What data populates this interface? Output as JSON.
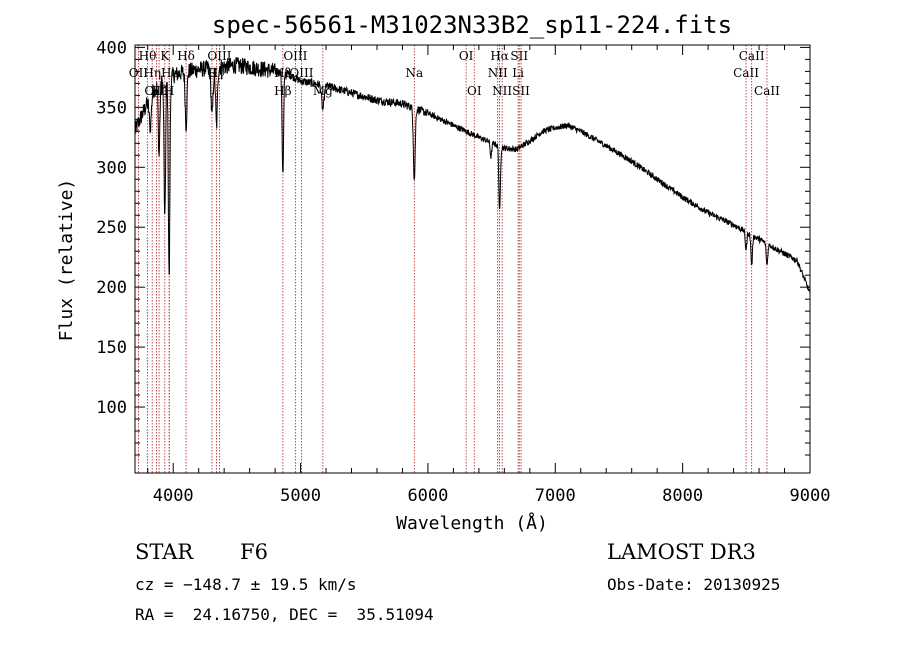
{
  "chart_data": {
    "type": "line",
    "title": "spec-56561-M31023N33B2_sp11-224.fits",
    "xlabel": "Wavelength (Å)",
    "ylabel": "Flux (relative)",
    "xlim": [
      3700,
      9000
    ],
    "ylim": [
      45,
      402
    ],
    "xticks": [
      4000,
      5000,
      6000,
      7000,
      8000,
      9000
    ],
    "yticks": [
      100,
      150,
      200,
      250,
      300,
      350,
      400
    ],
    "series_color": "#000000",
    "line_marker_color": "#b22222",
    "continuum": [
      [
        3700,
        330
      ],
      [
        3760,
        345
      ],
      [
        3850,
        365
      ],
      [
        3950,
        375
      ],
      [
        4100,
        380
      ],
      [
        4300,
        383
      ],
      [
        4500,
        385
      ],
      [
        4700,
        382
      ],
      [
        4900,
        378
      ],
      [
        5000,
        372
      ],
      [
        5200,
        368
      ],
      [
        5400,
        362
      ],
      [
        5600,
        356
      ],
      [
        5800,
        353
      ],
      [
        6000,
        345
      ],
      [
        6200,
        335
      ],
      [
        6400,
        325
      ],
      [
        6600,
        316
      ],
      [
        6700,
        315
      ],
      [
        6800,
        322
      ],
      [
        6900,
        330
      ],
      [
        7000,
        333
      ],
      [
        7100,
        335
      ],
      [
        7200,
        330
      ],
      [
        7400,
        318
      ],
      [
        7600,
        305
      ],
      [
        7800,
        290
      ],
      [
        8000,
        275
      ],
      [
        8200,
        262
      ],
      [
        8400,
        252
      ],
      [
        8600,
        240
      ],
      [
        8800,
        228
      ],
      [
        8900,
        222
      ],
      [
        9000,
        195
      ]
    ],
    "absorption_features": [
      [
        3820,
        25,
        8
      ],
      [
        3889,
        60,
        6
      ],
      [
        3934,
        120,
        6
      ],
      [
        3968,
        170,
        6
      ],
      [
        4101,
        45,
        7
      ],
      [
        4305,
        40,
        8
      ],
      [
        4340,
        50,
        7
      ],
      [
        4861,
        85,
        6
      ],
      [
        5175,
        20,
        10
      ],
      [
        5893,
        60,
        7
      ],
      [
        6563,
        55,
        6
      ],
      [
        6495,
        12,
        6
      ],
      [
        8498,
        15,
        6
      ],
      [
        8542,
        25,
        6
      ],
      [
        8662,
        18,
        6
      ]
    ],
    "lines": [
      {
        "name": "Hθ",
        "wavelength": 3798,
        "row": 0
      },
      {
        "name": "OII",
        "wavelength": 3727,
        "row": 1
      },
      {
        "name": "Hη",
        "wavelength": 3835,
        "row": 1
      },
      {
        "name": "K",
        "wavelength": 3934,
        "row": 0
      },
      {
        "name": "Hε",
        "wavelength": 3970,
        "row": 1
      },
      {
        "name": "OIII",
        "wavelength": 3868,
        "row": 2
      },
      {
        "name": "Hζ",
        "wavelength": 3889,
        "row": 2
      },
      {
        "name": "H",
        "wavelength": 3968,
        "row": 2
      },
      {
        "name": "Hδ",
        "wavelength": 4101,
        "row": 0
      },
      {
        "name": "G",
        "wavelength": 4304,
        "row": 1
      },
      {
        "name": "OIII",
        "wavelength": 4363,
        "row": 0
      },
      {
        "name": "Hγ",
        "wavelength": 4340,
        "row": 1
      },
      {
        "name": "OIII",
        "wavelength": 4959,
        "row": 0
      },
      {
        "name": "Hβ",
        "wavelength": 4861,
        "row": 1
      },
      {
        "name": "OIII",
        "wavelength": 5007,
        "row": 1
      },
      {
        "name": "Hβ",
        "wavelength": 4861,
        "row": 2
      },
      {
        "name": "Mg",
        "wavelength": 5175,
        "row": 2
      },
      {
        "name": "Na",
        "wavelength": 5893,
        "row": 1
      },
      {
        "name": "OI",
        "wavelength": 6300,
        "row": 0
      },
      {
        "name": "OI",
        "wavelength": 6364,
        "row": 2
      },
      {
        "name": "Hα",
        "wavelength": 6563,
        "row": 0
      },
      {
        "name": "NII",
        "wavelength": 6548,
        "row": 1
      },
      {
        "name": "NII",
        "wavelength": 6583,
        "row": 2
      },
      {
        "name": "SII",
        "wavelength": 6717,
        "row": 0
      },
      {
        "name": "Li",
        "wavelength": 6708,
        "row": 1
      },
      {
        "name": "SII",
        "wavelength": 6731,
        "row": 2
      },
      {
        "name": "CaII",
        "wavelength": 8542,
        "row": 0
      },
      {
        "name": "CaII",
        "wavelength": 8498,
        "row": 1
      },
      {
        "name": "CaII",
        "wavelength": 8662,
        "row": 2
      }
    ]
  },
  "info": {
    "object_class": "STAR",
    "subclass": "F6",
    "survey": "LAMOST DR3",
    "cz": "cz = −148.7 ± 19.5 km/s",
    "obs_date": "Obs-Date: 20130925",
    "coords": "RA =  24.16750, DEC =  35.51094"
  }
}
